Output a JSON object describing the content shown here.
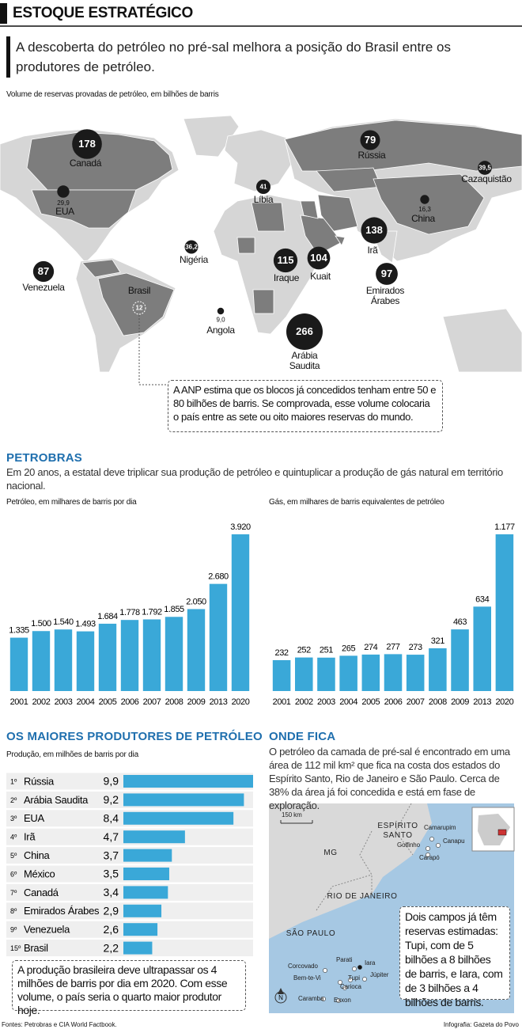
{
  "header": {
    "title": "ESTOQUE ESTRATÉGICO",
    "subtitle": "A descoberta do petróleo no pré-sal melhora a posição do Brasil entre os produtores de petróleo."
  },
  "chart_data": [
    {
      "type": "bubble_map",
      "title": "Volume de reservas provadas de petróleo, em bilhões de barris",
      "categories": [
        "Canadá",
        "Rússia",
        "Cazaquistão",
        "EUA",
        "Líbia",
        "China",
        "Irã",
        "Nigéria",
        "Iraque",
        "Kuait",
        "Emirados Árabes",
        "Venezuela",
        "Brasil",
        "Angola",
        "Arábia Saudita"
      ],
      "values": [
        178,
        79,
        39.5,
        29.9,
        41,
        16.3,
        138,
        36.2,
        115,
        104,
        97,
        87,
        12,
        9.0,
        266
      ],
      "value_labels": [
        "178",
        "79",
        "39,5",
        "29,9",
        "41",
        "16,3",
        "138",
        "36,2",
        "115",
        "104",
        "97",
        "87",
        "12",
        "9,0",
        "266"
      ],
      "color": "#1a1a1a",
      "note": "A ANP estima que os blocos já concedidos tenham entre 50 e 80 bilhões de barris. Se comprovada, esse volume colocaria o país entre as sete ou oito maiores reservas do mundo."
    },
    {
      "type": "bar",
      "title": "Petróleo, em milhares de barris por dia",
      "categories": [
        "2001",
        "2002",
        "2003",
        "2004",
        "2005",
        "2006",
        "2007",
        "2008",
        "2009",
        "2013",
        "2020"
      ],
      "values": [
        1335,
        1500,
        1540,
        1493,
        1684,
        1778,
        1792,
        1855,
        2050,
        2680,
        3920
      ],
      "value_labels": [
        "1.335",
        "1.500",
        "1.540",
        "1.493",
        "1.684",
        "1.778",
        "1.792",
        "1.855",
        "2.050",
        "2.680",
        "3.920"
      ],
      "color": "#3aa8d8"
    },
    {
      "type": "bar",
      "title": "Gás, em milhares de barris equivalentes de petróleo",
      "categories": [
        "2001",
        "2002",
        "2003",
        "2004",
        "2005",
        "2006",
        "2007",
        "2008",
        "2009",
        "2013",
        "2020"
      ],
      "values": [
        232,
        252,
        251,
        265,
        274,
        277,
        273,
        321,
        463,
        634,
        1177
      ],
      "value_labels": [
        "232",
        "252",
        "251",
        "265",
        "274",
        "277",
        "273",
        "321",
        "463",
        "634",
        "1.177"
      ],
      "color": "#3aa8d8"
    },
    {
      "type": "hbar",
      "title": "OS MAIORES PRODUTORES DE PETRÓLEO",
      "subtitle": "Produção, em milhões de barris por dia",
      "ranks": [
        "1º",
        "2º",
        "3º",
        "4º",
        "5º",
        "6º",
        "7º",
        "8º",
        "9º",
        "15º"
      ],
      "categories": [
        "Rússia",
        "Arábia Saudita",
        "EUA",
        "Irã",
        "China",
        "México",
        "Canadá",
        "Emirados Árabes",
        "Venezuela",
        "Brasil"
      ],
      "values": [
        9.9,
        9.2,
        8.4,
        4.7,
        3.7,
        3.5,
        3.4,
        2.9,
        2.6,
        2.2
      ],
      "value_labels": [
        "9,9",
        "9,2",
        "8,4",
        "4,7",
        "3,7",
        "3,5",
        "3,4",
        "2,9",
        "2,6",
        "2,2"
      ],
      "color": "#3aa8d8",
      "note": "A produção brasileira deve ultrapassar os 4 milhões de barris por dia em 2020. Com esse volume, o país seria o quarto maior produtor hoje."
    }
  ],
  "petrobras": {
    "heading": "PETROBRAS",
    "text": "Em 20 anos, a estatal deve triplicar sua produção de petróleo e quintuplicar a produção de gás natural em território nacional."
  },
  "location": {
    "heading": "ONDE FICA",
    "text": "O petróleo da camada de pré-sal é encontrado em uma área de 112 mil km² que fica na costa dos estados do Espírito Santo, Rio de Janeiro e São Paulo. Cerca de 38% da área já foi concedida e está em fase de exploração.",
    "scale": "150 km",
    "states": [
      "ESPÍRITO SANTO",
      "MG",
      "RIO DE JANEIRO",
      "SÃO PAULO"
    ],
    "fields": [
      "Camarupim",
      "Canapu",
      "Golfinho",
      "Carapó",
      "Parati",
      "Iara",
      "Corcovado",
      "Tupi",
      "Júpiter",
      "Bem-te-Vi",
      "Carioca",
      "Caramba",
      "Exxon"
    ],
    "note": "Dois campos já têm reservas estimadas: Tupi, com de 5 bilhões a 8 bilhões de barris, e Iara, com de 3 bilhões a 4 bilhões de barris."
  },
  "footer": {
    "sources": "Fontes: Petrobras e CIA World Factbook.",
    "credit": "Infografia: Gazeta do Povo"
  }
}
